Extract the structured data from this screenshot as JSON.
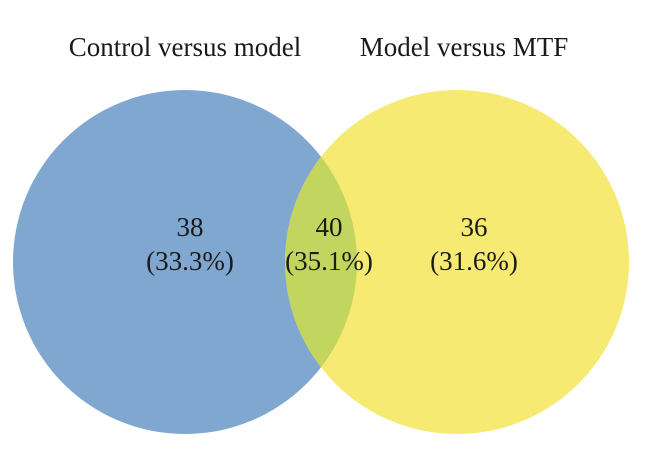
{
  "chart_data": {
    "type": "venn",
    "sets": [
      {
        "name": "Control versus model",
        "color": "#7fa7d0"
      },
      {
        "name": "Model versus MTF",
        "color": "#f6ea73"
      }
    ],
    "intersection_color": "#c2d65f",
    "regions": [
      {
        "region": "Control versus model only",
        "count": "38",
        "percent": "(33.3%)"
      },
      {
        "region": "intersection",
        "count": "40",
        "percent": "(35.1%)"
      },
      {
        "region": "Model versus MTF only",
        "count": "36",
        "percent": "(31.6%)"
      }
    ]
  }
}
